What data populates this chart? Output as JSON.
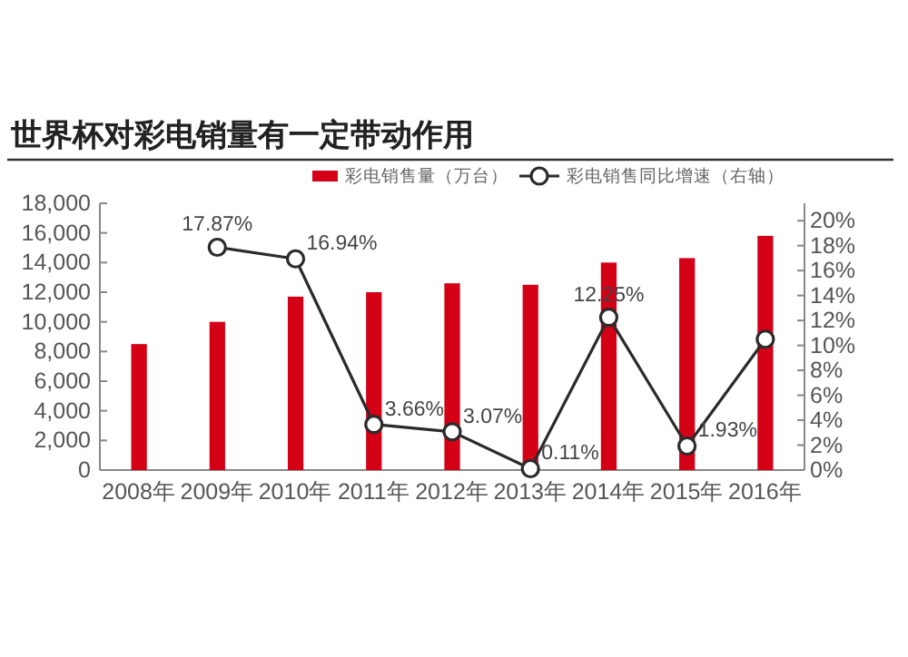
{
  "chart_data": {
    "type": "bar",
    "title": "世界杯对彩电销量有一定带动作用",
    "categories": [
      "2008年",
      "2009年",
      "2010年",
      "2011年",
      "2012年",
      "2013年",
      "2014年",
      "2015年",
      "2016年"
    ],
    "series": [
      {
        "name": "彩电销售量（万台）",
        "color": "#d40016",
        "values": [
          8500,
          10000,
          11700,
          12000,
          12600,
          12500,
          14000,
          14300,
          15800
        ]
      },
      {
        "name": "彩电销售同比增速（右轴）",
        "type": "line",
        "axis": "y2",
        "color": "#2b2b2b",
        "marker": "circle",
        "values": [
          null,
          17.87,
          16.94,
          3.66,
          3.07,
          0.11,
          12.25,
          1.93,
          10.5
        ],
        "value_labels": [
          null,
          "17.87%",
          "16.94%",
          "3.66%",
          "3.07%",
          "0.11%",
          "12.25%",
          "1.93%",
          null
        ]
      }
    ],
    "ylim": [
      0,
      18000
    ],
    "yticks": [
      {
        "value": 0,
        "label": "0"
      },
      {
        "value": 2000,
        "label": "2,000"
      },
      {
        "value": 4000,
        "label": "4,000"
      },
      {
        "value": 6000,
        "label": "6,000"
      },
      {
        "value": 8000,
        "label": "8,000"
      },
      {
        "value": 10000,
        "label": "10,000"
      },
      {
        "value": 12000,
        "label": "12,000"
      },
      {
        "value": 14000,
        "label": "14,000"
      },
      {
        "value": 16000,
        "label": "16,000"
      },
      {
        "value": 18000,
        "label": "18,000"
      }
    ],
    "y2lim": [
      0,
      21.4
    ],
    "y2ticks": [
      {
        "value": 0,
        "label": "0%"
      },
      {
        "value": 2,
        "label": "2%"
      },
      {
        "value": 4,
        "label": "4%"
      },
      {
        "value": 6,
        "label": "6%"
      },
      {
        "value": 8,
        "label": "8%"
      },
      {
        "value": 10,
        "label": "10%"
      },
      {
        "value": 12,
        "label": "12%"
      },
      {
        "value": 14,
        "label": "14%"
      },
      {
        "value": 16,
        "label": "16%"
      },
      {
        "value": 18,
        "label": "18%"
      },
      {
        "value": 20,
        "label": "20%"
      }
    ],
    "legend": "top",
    "grid": false
  }
}
